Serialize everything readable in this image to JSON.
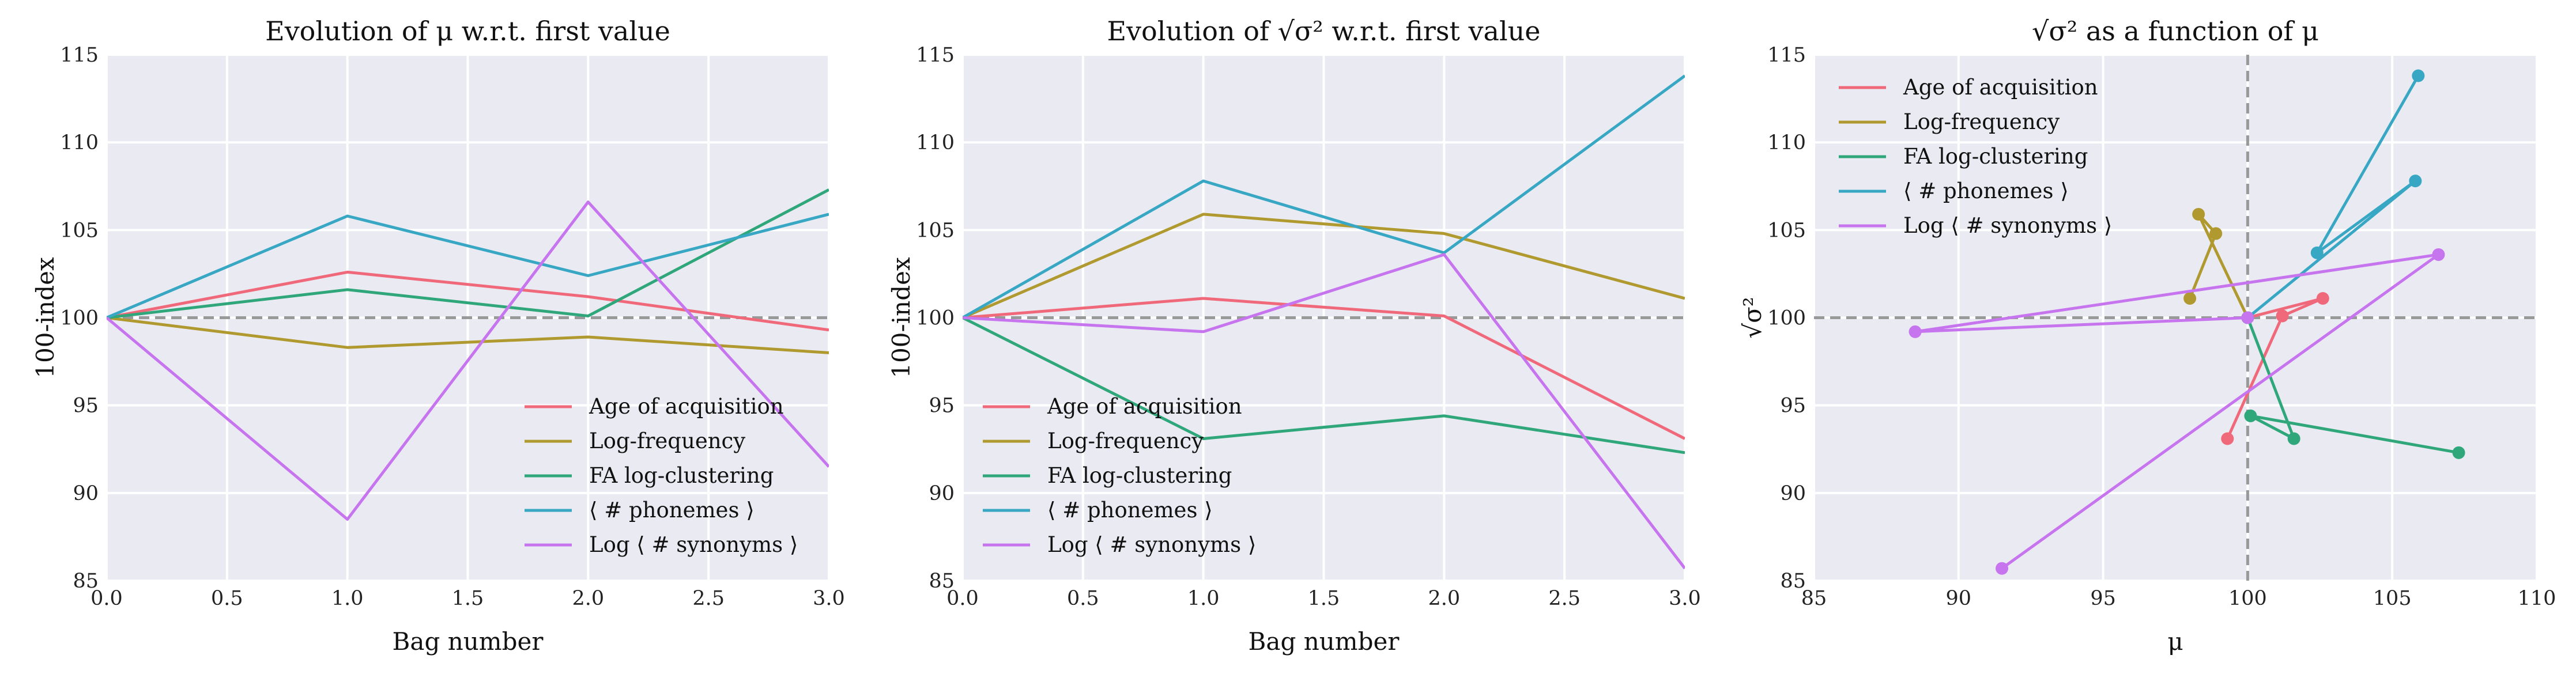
{
  "chart_data": [
    {
      "type": "line",
      "title": "Evolution of μ w.r.t. first value",
      "xlabel": "Bag number",
      "ylabel": "100-index",
      "xlim": [
        0.0,
        3.0
      ],
      "ylim": [
        85,
        115
      ],
      "xticks": [
        "0.0",
        "0.5",
        "1.0",
        "1.5",
        "2.0",
        "2.5",
        "3.0"
      ],
      "yticks": [
        "85",
        "90",
        "95",
        "100",
        "105",
        "110",
        "115"
      ],
      "grid": true,
      "legend": "lower-right",
      "reference_line_y": 100,
      "x": [
        0,
        1,
        2,
        3
      ],
      "series": [
        {
          "name": "Age of acquisition",
          "color": "#f0697a",
          "values": [
            100.0,
            102.6,
            101.2,
            99.3
          ]
        },
        {
          "name": "Log-frequency",
          "color": "#b09a30",
          "values": [
            100.0,
            98.3,
            98.9,
            98.0
          ]
        },
        {
          "name": "FA log-clustering",
          "color": "#2fa77a",
          "values": [
            100.0,
            101.6,
            100.1,
            107.3
          ]
        },
        {
          "name": "⟨ # phonemes ⟩",
          "color": "#37a7c4",
          "values": [
            100.0,
            105.8,
            102.4,
            105.9
          ]
        },
        {
          "name": "Log ⟨ # synonyms ⟩",
          "color": "#c774ef",
          "values": [
            100.0,
            88.5,
            106.6,
            91.5
          ]
        }
      ]
    },
    {
      "type": "line",
      "title": "Evolution of √σ² w.r.t. first value",
      "xlabel": "Bag number",
      "ylabel": "100-index",
      "xlim": [
        0.0,
        3.0
      ],
      "ylim": [
        85,
        115
      ],
      "xticks": [
        "0.0",
        "0.5",
        "1.0",
        "1.5",
        "2.0",
        "2.5",
        "3.0"
      ],
      "yticks": [
        "85",
        "90",
        "95",
        "100",
        "105",
        "110",
        "115"
      ],
      "grid": true,
      "legend": "lower-left",
      "reference_line_y": 100,
      "x": [
        0,
        1,
        2,
        3
      ],
      "series": [
        {
          "name": "Age of acquisition",
          "color": "#f0697a",
          "values": [
            100.0,
            101.1,
            100.1,
            93.1
          ]
        },
        {
          "name": "Log-frequency",
          "color": "#b09a30",
          "values": [
            100.0,
            105.9,
            104.8,
            101.1
          ]
        },
        {
          "name": "FA log-clustering",
          "color": "#2fa77a",
          "values": [
            100.0,
            93.1,
            94.4,
            92.3
          ]
        },
        {
          "name": "⟨ # phonemes ⟩",
          "color": "#37a7c4",
          "values": [
            100.0,
            107.8,
            103.7,
            113.8
          ]
        },
        {
          "name": "Log ⟨ # synonyms ⟩",
          "color": "#c774ef",
          "values": [
            100.0,
            99.2,
            103.6,
            85.7
          ]
        }
      ]
    },
    {
      "type": "scatter",
      "title": "√σ² as a function of μ",
      "xlabel": "μ",
      "ylabel": "√σ²",
      "xlim": [
        85,
        110
      ],
      "ylim": [
        85,
        115
      ],
      "xticks": [
        "85",
        "90",
        "95",
        "100",
        "105",
        "110"
      ],
      "yticks": [
        "85",
        "90",
        "95",
        "100",
        "105",
        "110",
        "115"
      ],
      "grid": true,
      "legend": "upper-left",
      "reference_line_x": 100,
      "reference_line_y": 100,
      "connected": true,
      "series": [
        {
          "name": "Age of acquisition",
          "color": "#f0697a",
          "points": [
            [
              100.0,
              100.0
            ],
            [
              102.6,
              101.1
            ],
            [
              101.2,
              100.1
            ],
            [
              99.3,
              93.1
            ]
          ]
        },
        {
          "name": "Log-frequency",
          "color": "#b09a30",
          "points": [
            [
              100.0,
              100.0
            ],
            [
              98.3,
              105.9
            ],
            [
              98.9,
              104.8
            ],
            [
              98.0,
              101.1
            ]
          ]
        },
        {
          "name": "FA log-clustering",
          "color": "#2fa77a",
          "points": [
            [
              100.0,
              100.0
            ],
            [
              101.6,
              93.1
            ],
            [
              100.1,
              94.4
            ],
            [
              107.3,
              92.3
            ]
          ]
        },
        {
          "name": "⟨ # phonemes ⟩",
          "color": "#37a7c4",
          "points": [
            [
              100.0,
              100.0
            ],
            [
              105.8,
              107.8
            ],
            [
              102.4,
              103.7
            ],
            [
              105.9,
              113.8
            ]
          ]
        },
        {
          "name": "Log ⟨ # synonyms ⟩",
          "color": "#c774ef",
          "points": [
            [
              100.0,
              100.0
            ],
            [
              88.5,
              99.2
            ],
            [
              106.6,
              103.6
            ],
            [
              91.5,
              85.7
            ]
          ]
        }
      ]
    }
  ]
}
